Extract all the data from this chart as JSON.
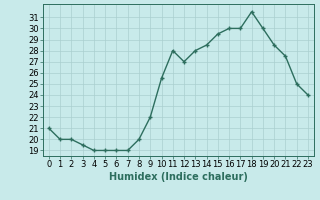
{
  "x": [
    0,
    1,
    2,
    3,
    4,
    5,
    6,
    7,
    8,
    9,
    10,
    11,
    12,
    13,
    14,
    15,
    16,
    17,
    18,
    19,
    20,
    21,
    22,
    23
  ],
  "y": [
    21,
    20,
    20,
    19.5,
    19,
    19,
    19,
    19,
    20,
    22,
    25.5,
    28,
    27,
    28,
    28.5,
    29.5,
    30,
    30,
    31.5,
    30,
    28.5,
    27.5,
    25,
    24
  ],
  "line_color": "#2d6e5e",
  "marker": "+",
  "bg_color": "#c8eaea",
  "grid_color": "#aacfcf",
  "xlabel": "Humidex (Indice chaleur)",
  "xlim": [
    -0.5,
    23.5
  ],
  "ylim": [
    18.5,
    32.2
  ],
  "yticks": [
    19,
    20,
    21,
    22,
    23,
    24,
    25,
    26,
    27,
    28,
    29,
    30,
    31
  ],
  "xticks": [
    0,
    1,
    2,
    3,
    4,
    5,
    6,
    7,
    8,
    9,
    10,
    11,
    12,
    13,
    14,
    15,
    16,
    17,
    18,
    19,
    20,
    21,
    22,
    23
  ],
  "xlabel_fontsize": 7,
  "tick_fontsize": 6,
  "linewidth": 1.0,
  "markersize": 3.5,
  "markeredgewidth": 1.0
}
